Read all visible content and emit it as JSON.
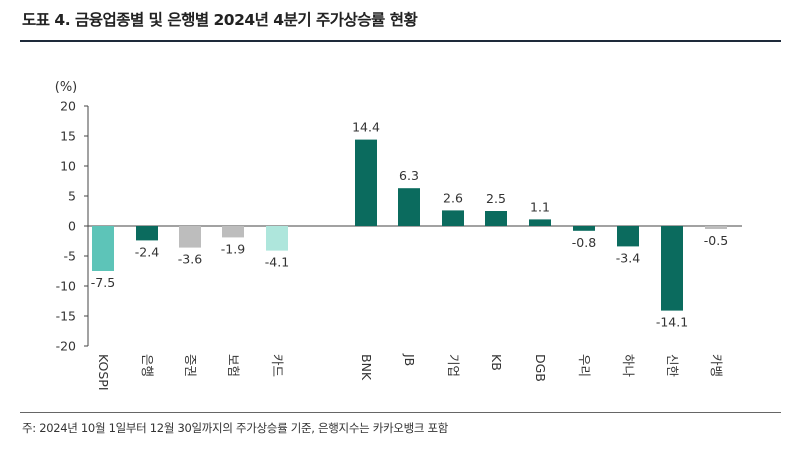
{
  "title": "도표 4. 금융업종별 및 은행별 2024년 4분기 주가상승률 현황",
  "note": "주: 2024년 10월 1일부터 12월 30일까지의 주가상승률 기준, 은행지수는 카카오뱅크 포함",
  "colors": {
    "sector": "#5dc4b8",
    "bank": "#0b6b5e",
    "gray": "#bdbdbd",
    "light": "#aee6dc"
  },
  "chart_data": {
    "type": "bar",
    "unit_label": "(%)",
    "ylim": [
      -20,
      20
    ],
    "yticks": [
      20,
      15,
      10,
      5,
      0,
      -5,
      -10,
      -15,
      -20
    ],
    "grid": false,
    "categories": [
      "KOSPI",
      "은행",
      "증권",
      "보험",
      "카드",
      "BNK",
      "JB",
      "기업",
      "KB",
      "DGB",
      "우리",
      "하나",
      "신한",
      "카뱅"
    ],
    "values": [
      -7.5,
      -2.4,
      -3.6,
      -1.9,
      -4.1,
      14.4,
      6.3,
      2.6,
      2.5,
      1.1,
      -0.8,
      -3.4,
      -14.1,
      -0.5
    ],
    "value_labels": [
      "-7.5",
      "-2.4",
      "-3.6",
      "-1.9",
      "-4.1",
      "14.4",
      "6.3",
      "2.6",
      "2.5",
      "1.1",
      "-0.8",
      "-3.4",
      "-14.1",
      "-0.5"
    ],
    "bar_colors": [
      "#5dc4b8",
      "#0b6b5e",
      "#bdbdbd",
      "#bdbdbd",
      "#aee6dc",
      "#0b6b5e",
      "#0b6b5e",
      "#0b6b5e",
      "#0b6b5e",
      "#0b6b5e",
      "#0b6b5e",
      "#0b6b5e",
      "#0b6b5e",
      "#bdbdbd"
    ]
  }
}
